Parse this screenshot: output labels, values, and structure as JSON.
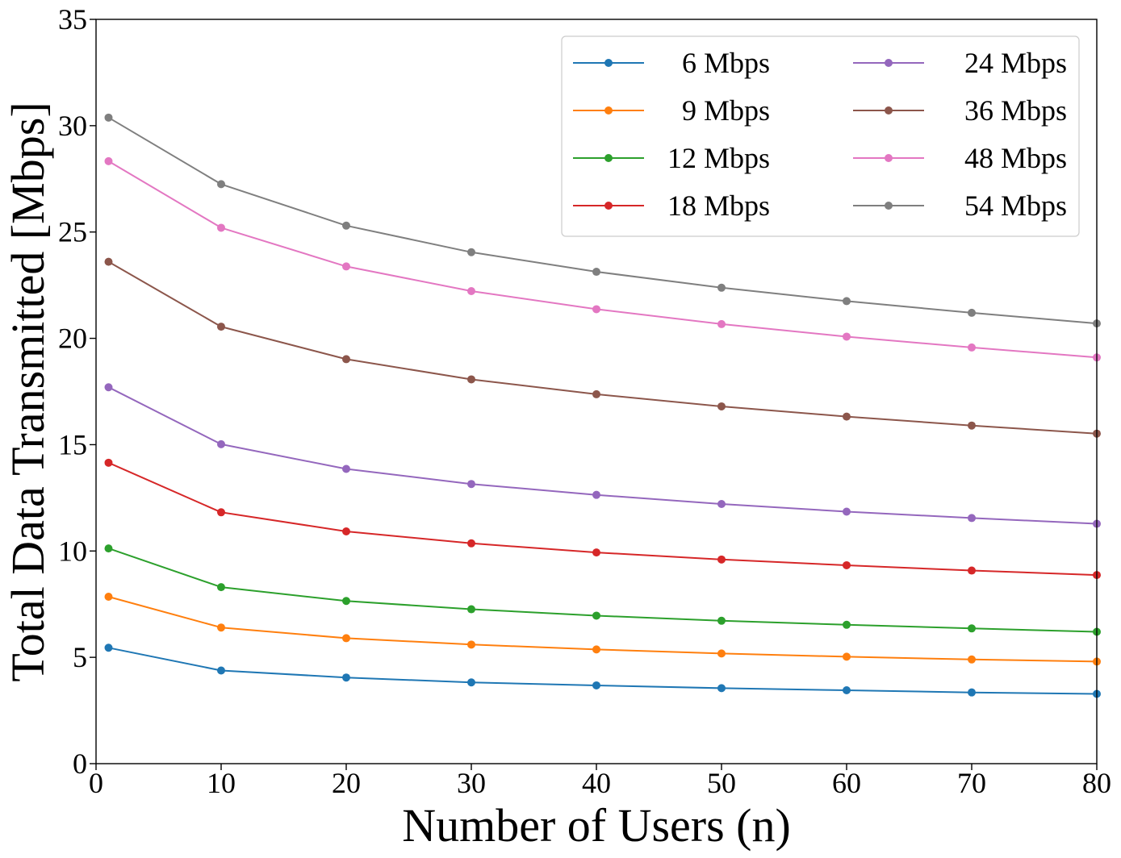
{
  "chart_data": {
    "type": "line",
    "title": "",
    "xlabel": "Number of Users (n)",
    "ylabel": "Total Data Transmitted [Mbps]",
    "xlim": [
      0,
      80
    ],
    "ylim": [
      0,
      35
    ],
    "xticks": [
      0,
      10,
      20,
      30,
      40,
      50,
      60,
      70,
      80
    ],
    "yticks": [
      0,
      5,
      10,
      15,
      20,
      25,
      30,
      35
    ],
    "grid": false,
    "legend": {
      "placement": "top-right",
      "columns": 2
    },
    "x": [
      1,
      10,
      20,
      30,
      40,
      50,
      60,
      70,
      80
    ],
    "series": [
      {
        "name": "6 Mbps",
        "color": "#1f77b4",
        "values": [
          5.45,
          4.38,
          4.05,
          3.82,
          3.68,
          3.55,
          3.45,
          3.35,
          3.28
        ]
      },
      {
        "name": "9 Mbps",
        "color": "#ff7f0e",
        "values": [
          7.85,
          6.4,
          5.9,
          5.6,
          5.37,
          5.18,
          5.03,
          4.9,
          4.8
        ]
      },
      {
        "name": "12 Mbps",
        "color": "#2ca02c",
        "values": [
          10.12,
          8.3,
          7.65,
          7.26,
          6.96,
          6.72,
          6.53,
          6.36,
          6.2
        ]
      },
      {
        "name": "18 Mbps",
        "color": "#d62728",
        "values": [
          14.15,
          11.82,
          10.92,
          10.36,
          9.93,
          9.6,
          9.33,
          9.08,
          8.87
        ]
      },
      {
        "name": "24 Mbps",
        "color": "#9467bd",
        "values": [
          17.7,
          15.02,
          13.86,
          13.15,
          12.64,
          12.21,
          11.85,
          11.55,
          11.28
        ]
      },
      {
        "name": "36 Mbps",
        "color": "#8c564b",
        "values": [
          23.6,
          20.55,
          19.02,
          18.07,
          17.37,
          16.8,
          16.32,
          15.9,
          15.52
        ]
      },
      {
        "name": "48 Mbps",
        "color": "#e377c2",
        "values": [
          28.33,
          25.2,
          23.38,
          22.22,
          21.37,
          20.67,
          20.08,
          19.57,
          19.1
        ]
      },
      {
        "name": "54 Mbps",
        "color": "#7f7f7f",
        "values": [
          30.38,
          27.25,
          25.3,
          24.05,
          23.13,
          22.38,
          21.75,
          21.2,
          20.7
        ]
      }
    ]
  }
}
